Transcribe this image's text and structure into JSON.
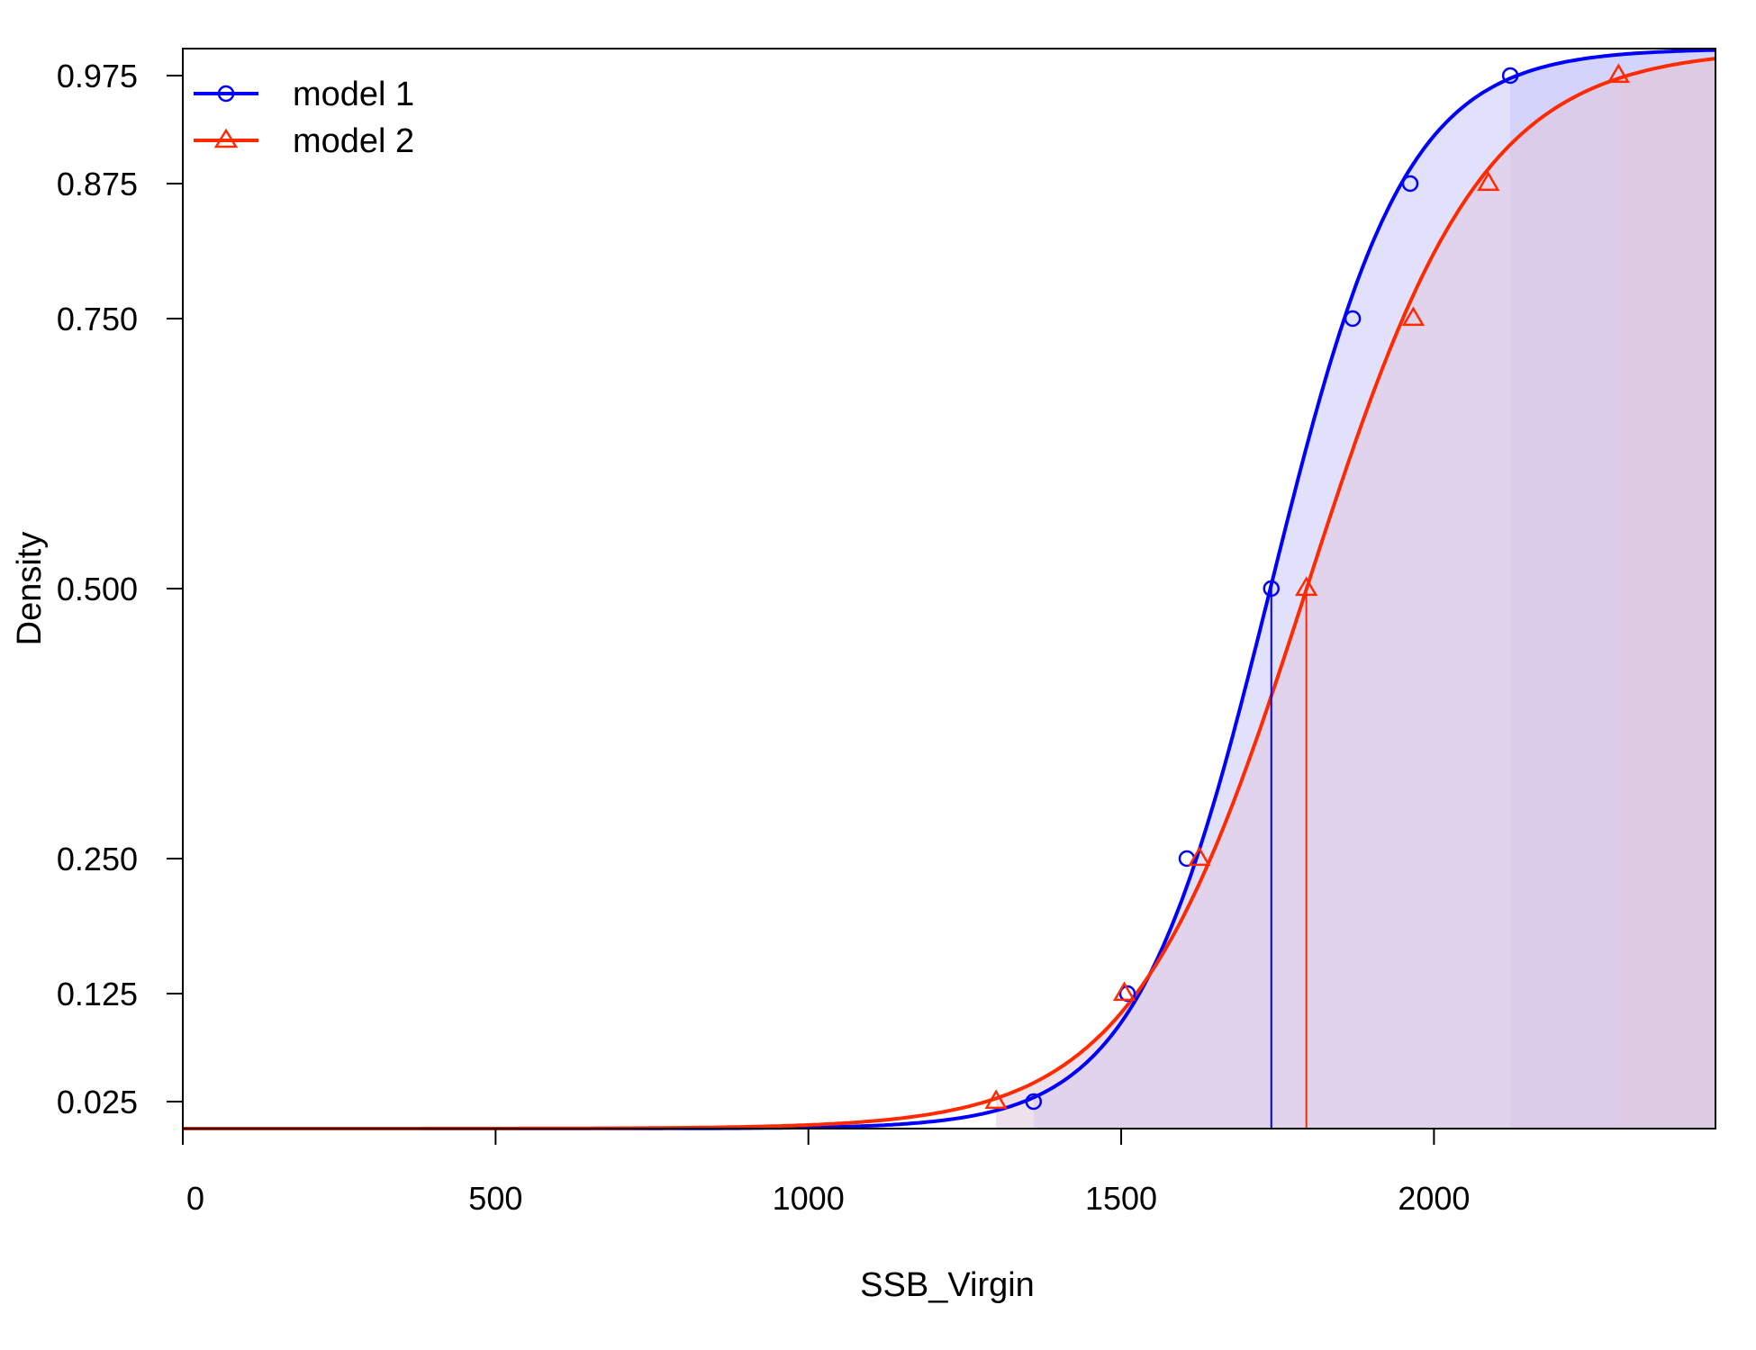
{
  "chart_data": {
    "type": "line",
    "xlabel": "SSB_Virgin",
    "ylabel": "Density",
    "xlim": [
      0,
      2450
    ],
    "ylim": [
      0,
      1
    ],
    "x_ticks": [
      "0",
      "500",
      "1000",
      "1500",
      "2000"
    ],
    "y_ticks": [
      "0.025",
      "0.125",
      "0.250",
      "0.500",
      "0.750",
      "0.875",
      "0.975"
    ],
    "grid": false,
    "legend_position": "top-left",
    "series": [
      {
        "name": "model 1",
        "color": "#0000ff",
        "fill": "#c8c8fa",
        "marker": "circle",
        "median": 1740,
        "x": [
          1360,
          1510,
          1605,
          1740,
          1870,
          1962,
          2122
        ],
        "y": [
          0.025,
          0.125,
          0.25,
          0.5,
          0.75,
          0.875,
          0.975
        ]
      },
      {
        "name": "model 2",
        "color": "#ff2a00",
        "fill": "#e2c8dc",
        "marker": "triangle",
        "median": 1796,
        "x": [
          1300,
          1505,
          1625,
          1796,
          1967,
          2087,
          2295
        ],
        "y": [
          0.025,
          0.125,
          0.25,
          0.5,
          0.75,
          0.875,
          0.975
        ]
      }
    ]
  }
}
